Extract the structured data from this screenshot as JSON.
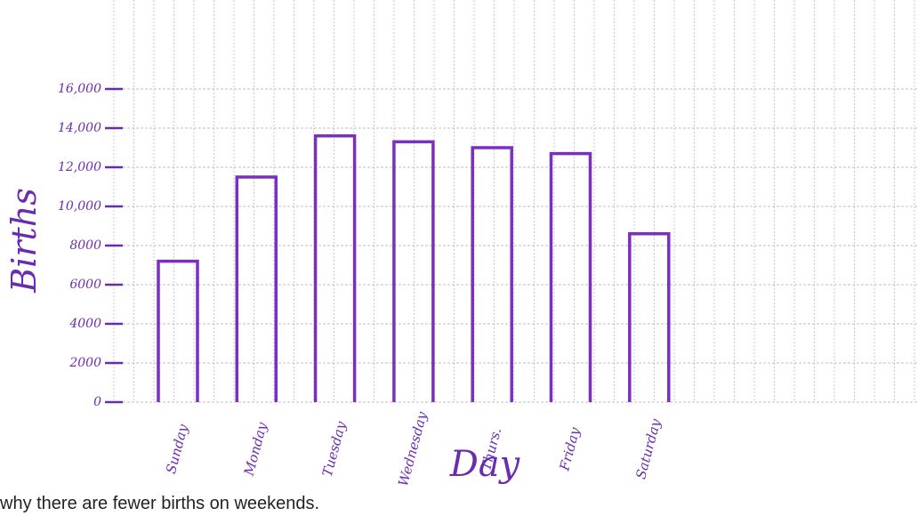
{
  "chart_data": {
    "type": "bar",
    "caption": "why there are fewer births on weekends.",
    "x_label": "Day",
    "y_label": "Births",
    "categories": [
      "Sunday",
      "Monday",
      "Tuesday",
      "Wednesday",
      "Thurs.",
      "Friday",
      "Saturday"
    ],
    "values": [
      7200,
      11500,
      13600,
      13300,
      13000,
      12700,
      8600
    ],
    "color": "#7b2fbf",
    "ylim": [
      0,
      20000
    ],
    "yticks": [
      0,
      2000,
      4000,
      6000,
      8000,
      {
        "value": 10000,
        "label": "10,000"
      },
      {
        "value": 12000,
        "label": "12,000"
      },
      {
        "value": 14000,
        "label": "14,000"
      },
      {
        "value": 16000,
        "label": "16,000"
      }
    ],
    "grid": true
  }
}
